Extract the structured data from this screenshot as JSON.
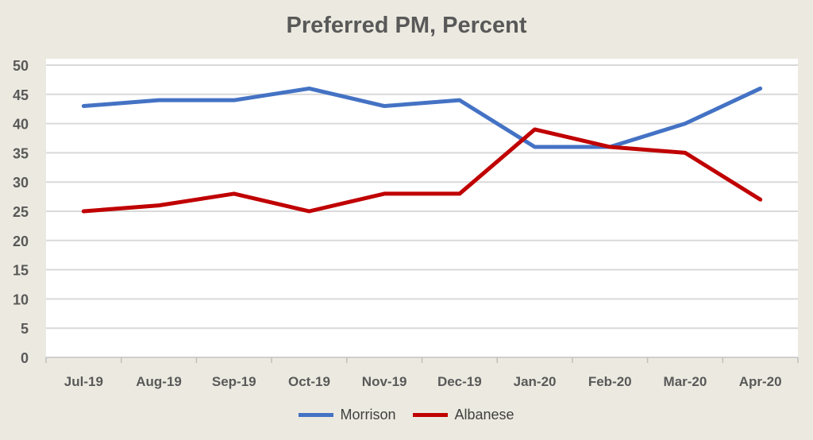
{
  "chart_data": {
    "type": "line",
    "title": "Preferred PM, Percent",
    "xlabel": "",
    "ylabel": "",
    "categories": [
      "Jul-19",
      "Aug-19",
      "Sep-19",
      "Oct-19",
      "Nov-19",
      "Dec-19",
      "Jan-20",
      "Feb-20",
      "Mar-20",
      "Apr-20"
    ],
    "ylim": [
      0,
      50
    ],
    "yticks": [
      "0",
      "5",
      "10",
      "15",
      "20",
      "25",
      "30",
      "35",
      "40",
      "45",
      "50"
    ],
    "grid": true,
    "legend_position": "bottom",
    "series": [
      {
        "name": "Morrison",
        "color": "#4472C4",
        "values": [
          43,
          44,
          44,
          46,
          43,
          44,
          36,
          36,
          40,
          46
        ]
      },
      {
        "name": "Albanese",
        "color": "#C00000",
        "values": [
          25,
          26,
          28,
          25,
          28,
          28,
          39,
          36,
          35,
          27
        ]
      }
    ]
  }
}
